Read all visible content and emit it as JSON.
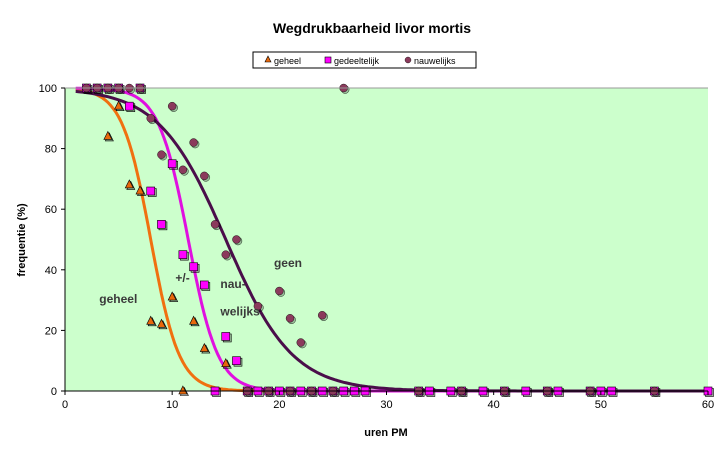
{
  "chart_data": {
    "type": "scatter",
    "title": "Wegdrukbaarheid livor mortis",
    "xlabel": "uren PM",
    "ylabel": "frequentie (%)",
    "xlim": [
      0,
      60
    ],
    "ylim": [
      0,
      100
    ],
    "xticks": [
      0,
      10,
      20,
      30,
      40,
      50,
      60
    ],
    "yticks": [
      0,
      20,
      40,
      60,
      80,
      100
    ],
    "grid": false,
    "legend_position": "top",
    "background": "#CCFFCC",
    "series": [
      {
        "name": "geheel",
        "marker": "triangle",
        "color": "#E8680C",
        "curve_color": "#F07010",
        "curve": {
          "midpoint": 8,
          "slope": 0.75
        },
        "points": [
          [
            4,
            84
          ],
          [
            5,
            94
          ],
          [
            6,
            68
          ],
          [
            7,
            66
          ],
          [
            8,
            23
          ],
          [
            9,
            22
          ],
          [
            10,
            31
          ],
          [
            11,
            0
          ],
          [
            12,
            23
          ],
          [
            13,
            14
          ],
          [
            15,
            9
          ]
        ]
      },
      {
        "name": "gedeeltelijk",
        "marker": "square",
        "color": "#FF00FF",
        "curve_color": "#E010E0",
        "curve": {
          "midpoint": 11.5,
          "slope": 0.72
        },
        "points": [
          [
            2,
            100
          ],
          [
            3,
            100
          ],
          [
            4,
            100
          ],
          [
            5,
            100
          ],
          [
            7,
            100
          ],
          [
            6,
            94
          ],
          [
            8,
            66
          ],
          [
            9,
            55
          ],
          [
            10,
            75
          ],
          [
            11,
            45
          ],
          [
            12,
            41
          ],
          [
            13,
            35
          ],
          [
            14,
            0
          ],
          [
            15,
            18
          ],
          [
            16,
            10
          ],
          [
            17,
            0
          ],
          [
            18,
            0
          ],
          [
            19,
            0
          ],
          [
            20,
            0
          ],
          [
            21,
            0
          ],
          [
            22,
            0
          ],
          [
            23,
            0
          ],
          [
            24,
            0
          ],
          [
            25,
            0
          ],
          [
            26,
            0
          ],
          [
            27,
            0
          ],
          [
            28,
            0
          ],
          [
            33,
            0
          ],
          [
            34,
            0
          ],
          [
            36,
            0
          ],
          [
            37,
            0
          ],
          [
            39,
            0
          ],
          [
            41,
            0
          ],
          [
            43,
            0
          ],
          [
            45,
            0
          ],
          [
            46,
            0
          ],
          [
            49,
            0
          ],
          [
            50,
            0
          ],
          [
            51,
            0
          ],
          [
            55,
            0
          ],
          [
            60,
            0
          ]
        ]
      },
      {
        "name": "nauwelijks",
        "marker": "circle",
        "color": "#8B3A5C",
        "curve_color": "#4A0E4A",
        "curve": {
          "midpoint": 15,
          "slope": 0.32
        },
        "points": [
          [
            2,
            100
          ],
          [
            3,
            100
          ],
          [
            4,
            100
          ],
          [
            5,
            100
          ],
          [
            6,
            100
          ],
          [
            7,
            100
          ],
          [
            8,
            90
          ],
          [
            9,
            78
          ],
          [
            10,
            94
          ],
          [
            11,
            73
          ],
          [
            12,
            82
          ],
          [
            13,
            71
          ],
          [
            14,
            55
          ],
          [
            15,
            45
          ],
          [
            16,
            50
          ],
          [
            18,
            28
          ],
          [
            20,
            33
          ],
          [
            21,
            24
          ],
          [
            22,
            16
          ],
          [
            24,
            25
          ],
          [
            26,
            100
          ],
          [
            17,
            0
          ],
          [
            19,
            0
          ],
          [
            21,
            0
          ],
          [
            23,
            0
          ],
          [
            25,
            0
          ],
          [
            33,
            0
          ],
          [
            37,
            0
          ],
          [
            41,
            0
          ],
          [
            45,
            0
          ],
          [
            49,
            0
          ],
          [
            55,
            0
          ]
        ]
      }
    ],
    "annotations": [
      {
        "text": "geheel",
        "x": 3.2,
        "y": 29
      },
      {
        "text": "+/-",
        "x": 10.3,
        "y": 36
      },
      {
        "text": "nau-",
        "x": 14.5,
        "y": 34
      },
      {
        "text": "welijks",
        "x": 14.5,
        "y": 25
      },
      {
        "text": "geen",
        "x": 19.5,
        "y": 41
      }
    ]
  }
}
